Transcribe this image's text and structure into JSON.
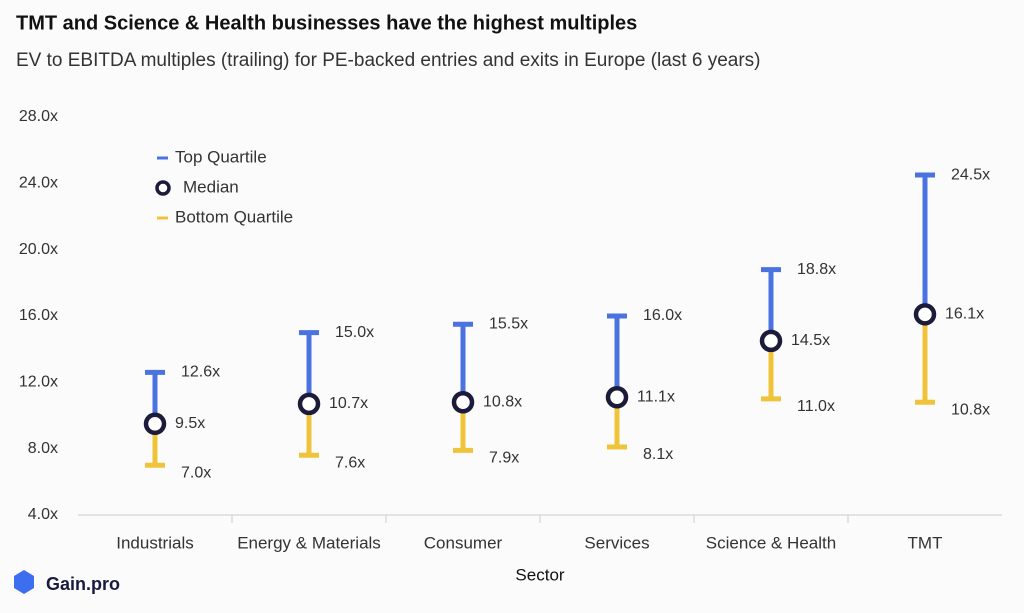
{
  "chart_data": {
    "type": "range",
    "title": "TMT and Science & Health businesses have the highest multiples",
    "subtitle": "EV to EBITDA multiples (trailing) for PE-backed entries and exits in Europe (last 6 years)",
    "x_label": "Sector",
    "logo": "Gain.pro",
    "legend": "top-left",
    "categories": [
      "Industrials",
      "Energy & Materials",
      "Consumer",
      "Services",
      "Science & Health",
      "TMT"
    ],
    "series": [
      {
        "name": "Top Quartile",
        "color": "#4a73e0",
        "values": [
          12.6,
          15.0,
          15.5,
          16.0,
          18.8,
          24.5
        ],
        "value_labels": [
          "12.6x",
          "15.0x",
          "15.5x",
          "16.0x",
          "18.8x",
          "24.5x"
        ]
      },
      {
        "name": "Median",
        "color": "#1c1c3a",
        "values": [
          9.5,
          10.7,
          10.8,
          11.1,
          14.5,
          16.1
        ],
        "value_labels": [
          "9.5x",
          "10.7x",
          "10.8x",
          "11.1x",
          "14.5x",
          "16.1x"
        ]
      },
      {
        "name": "Bottom Quartile",
        "color": "#f0c43a",
        "values": [
          7.0,
          7.6,
          7.9,
          8.1,
          11.0,
          10.8
        ],
        "value_labels": [
          "7.0x",
          "7.6x",
          "7.9x",
          "8.1x",
          "11.0x",
          "10.8x"
        ]
      }
    ],
    "ylim": [
      4,
      28
    ],
    "yticks": [
      {
        "value": 4,
        "label": "4.0x"
      },
      {
        "value": 8,
        "label": "8.0x"
      },
      {
        "value": 12,
        "label": "12.0x"
      },
      {
        "value": 16,
        "label": "16.0x"
      },
      {
        "value": 20,
        "label": "20.0x"
      },
      {
        "value": 24,
        "label": "24.0x"
      },
      {
        "value": 28,
        "label": "28.0x"
      }
    ]
  }
}
